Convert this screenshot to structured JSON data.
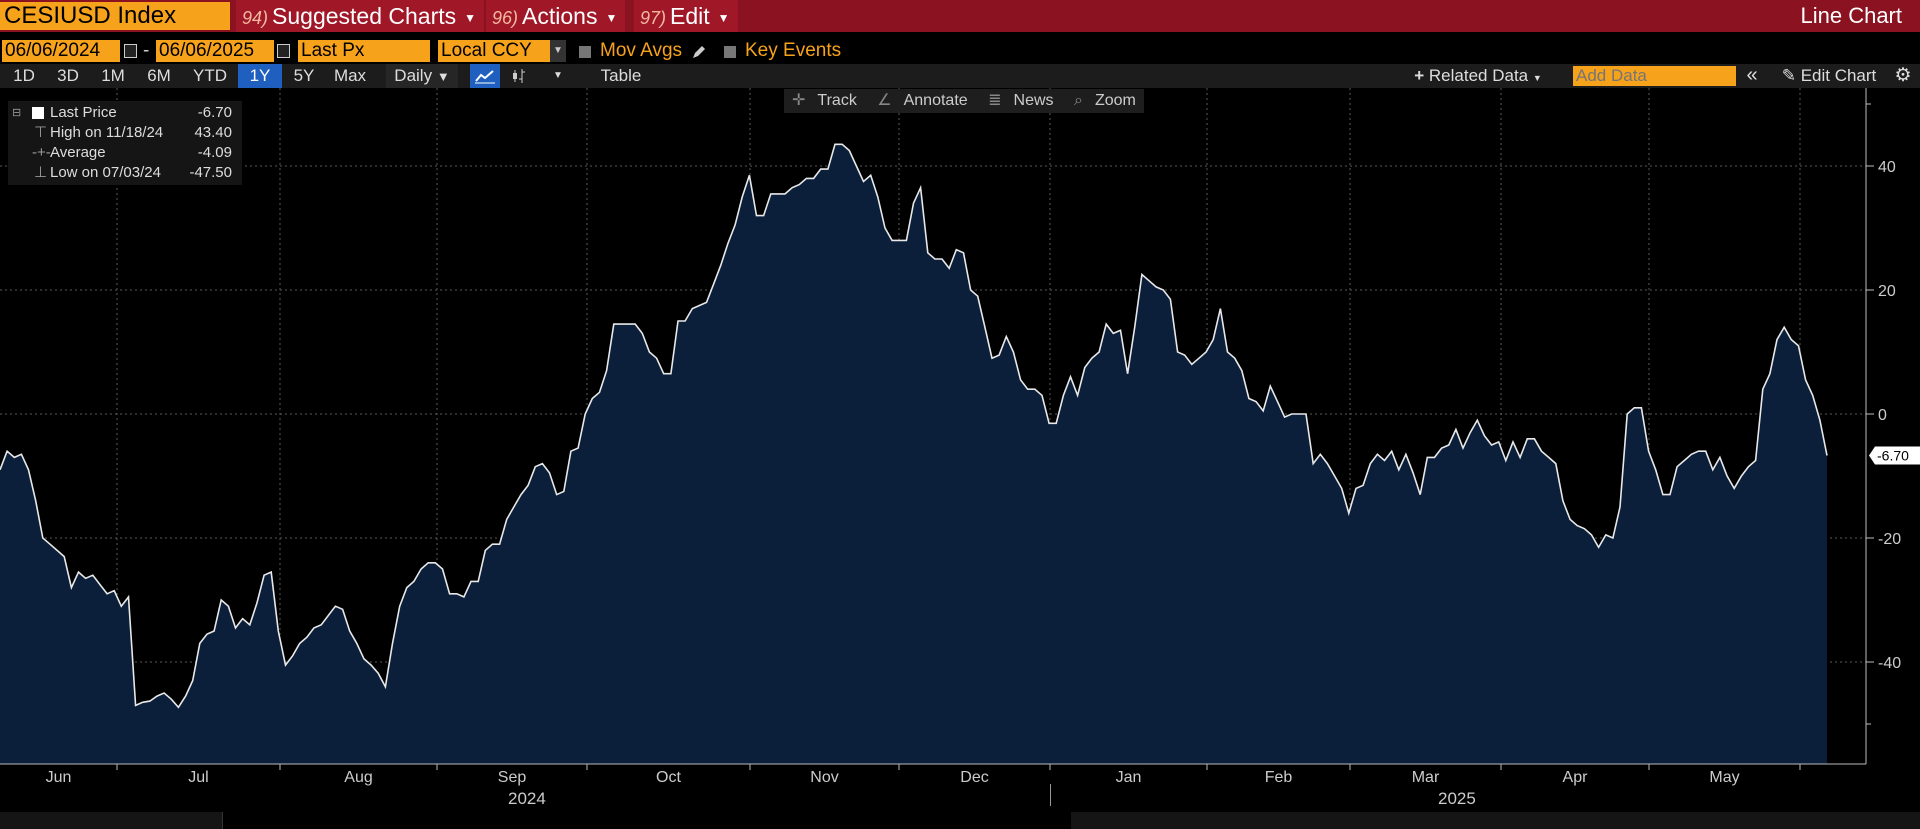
{
  "header": {
    "ticker": "CESIUSD Index",
    "menus": [
      {
        "num": "94)",
        "label": "Suggested Charts"
      },
      {
        "num": "96)",
        "label": "Actions"
      },
      {
        "num": "97)",
        "label": "Edit"
      }
    ],
    "chart_kind": "Line Chart"
  },
  "controls": {
    "start_date": "06/06/2024",
    "dash": "-",
    "end_date": "06/06/2025",
    "field": "Last Px",
    "currency": "Local CCY",
    "mov_avgs": "Mov Avgs",
    "key_events": "Key Events"
  },
  "ranges": [
    "1D",
    "3D",
    "1M",
    "6M",
    "YTD",
    "1Y",
    "5Y",
    "Max"
  ],
  "active_range": "1Y",
  "toolbar": {
    "frequency": "Daily",
    "table": "Table",
    "related": "Related Data",
    "add_data_placeholder": "Add Data",
    "edit_chart": "Edit Chart"
  },
  "chart_tools": [
    "Track",
    "Annotate",
    "News",
    "Zoom"
  ],
  "legend": [
    {
      "label": "Last Price",
      "value": "-6.70"
    },
    {
      "label": "High on 11/18/24",
      "value": "43.40"
    },
    {
      "label": "Average",
      "value": "-4.09"
    },
    {
      "label": "Low on 07/03/24",
      "value": "-47.50"
    }
  ],
  "colors": {
    "line": "#e8e8e8",
    "area": "#0b1f3a",
    "accent": "#f7a21b",
    "header_red": "#8b1220"
  },
  "chart_data": {
    "type": "area",
    "ylim": [
      -56,
      52
    ],
    "yticks": [
      40,
      20,
      0,
      -20,
      -40
    ],
    "grid": true,
    "last_value_label": "-6.70",
    "months": [
      "Jun",
      "Jul",
      "Aug",
      "Sep",
      "Oct",
      "Nov",
      "Dec",
      "Jan",
      "Feb",
      "Mar",
      "Apr",
      "May"
    ],
    "years": [
      "2024",
      "2025"
    ],
    "start": "2024-06-06",
    "values": [
      -9,
      -6,
      -7,
      -6.5,
      -9,
      -14,
      -20,
      -21,
      -22,
      -23,
      -28,
      -25.5,
      -26.5,
      -26,
      -27.5,
      -29,
      -28.5,
      -31,
      -29.5,
      -47,
      -46.5,
      -46.3,
      -45.5,
      -45,
      -46,
      -47.3,
      -45.5,
      -43,
      -37,
      -35.5,
      -35,
      -30,
      -31,
      -34.5,
      -33,
      -34,
      -30.5,
      -26,
      -25.5,
      -35,
      -40.5,
      -39,
      -37,
      -36,
      -34.5,
      -34,
      -32.5,
      -31,
      -31.5,
      -35,
      -37,
      -39.5,
      -40.5,
      -41.8,
      -44,
      -37,
      -31,
      -28,
      -27,
      -25,
      -24,
      -24,
      -25,
      -29,
      -29,
      -29.5,
      -27,
      -27,
      -22,
      -21,
      -21,
      -17,
      -15,
      -13,
      -11.5,
      -8.5,
      -8,
      -9.5,
      -13,
      -12.5,
      -6,
      -5.5,
      0,
      2.5,
      3.5,
      7,
      14.5,
      14.5,
      14.5,
      14.5,
      13,
      10,
      9,
      6.5,
      6.5,
      15,
      15,
      17,
      17.5,
      18,
      21,
      24,
      27.5,
      30.5,
      35,
      38.5,
      32,
      32,
      35.5,
      35.5,
      35.5,
      36.5,
      37,
      38,
      38,
      39.5,
      39.5,
      43.5,
      43.5,
      42.5,
      40,
      37.5,
      38.5,
      35,
      30,
      28,
      28,
      28,
      34,
      36.5,
      26,
      25,
      25,
      23.5,
      26.5,
      26,
      20,
      19,
      14,
      9,
      9.5,
      12.5,
      10,
      5.5,
      4,
      4,
      3,
      -1.5,
      -1.5,
      3,
      6,
      3,
      7.5,
      9,
      10,
      14.5,
      13,
      13.5,
      6.5,
      14,
      22.5,
      21.5,
      20.5,
      20,
      18.5,
      10,
      9.5,
      8,
      9,
      10,
      12,
      17,
      10,
      9,
      7,
      2.5,
      2,
      0.5,
      4.5,
      2,
      -0.5,
      0,
      0,
      0,
      -8,
      -6.5,
      -8,
      -10,
      -12,
      -16,
      -12,
      -11.5,
      -8,
      -6.5,
      -7.5,
      -6,
      -9,
      -6.5,
      -9.5,
      -13,
      -7,
      -7,
      -5.5,
      -5,
      -2.5,
      -5.5,
      -3,
      -1,
      -3.5,
      -5,
      -4.5,
      -7.5,
      -4.5,
      -7,
      -4,
      -4,
      -6,
      -7,
      -8,
      -14,
      -17,
      -18,
      -18.5,
      -19.5,
      -21.5,
      -19.5,
      -20,
      -15,
      0,
      1,
      1,
      -6,
      -9,
      -13,
      -13,
      -8.5,
      -7.5,
      -6.5,
      -6,
      -6,
      -9,
      -7,
      -10,
      -12,
      -10,
      -8.5,
      -7.5,
      4,
      6.5,
      12,
      14,
      12,
      11,
      5.5,
      3,
      -1,
      -6.7
    ]
  }
}
